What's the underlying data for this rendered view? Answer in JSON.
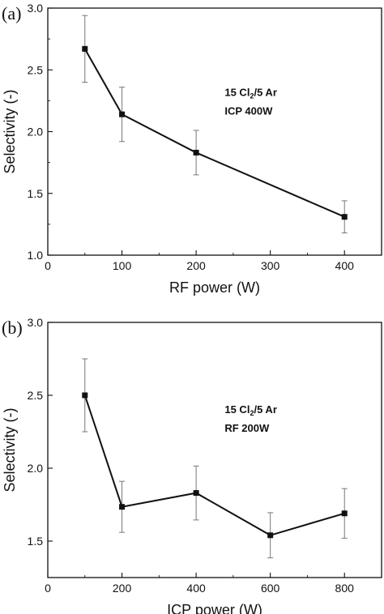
{
  "chart_data": [
    {
      "type": "line",
      "panel_label": "(a)",
      "xlabel": "RF power (W)",
      "ylabel": "Selectivity (-)",
      "xlim": [
        0,
        450
      ],
      "ylim": [
        1.0,
        3.0
      ],
      "xticks": [
        0,
        100,
        200,
        300,
        400
      ],
      "yticks": [
        1.0,
        1.5,
        2.0,
        2.5,
        3.0
      ],
      "x_tick_labels": [
        "0",
        "100",
        "200",
        "300",
        "400"
      ],
      "y_tick_labels": [
        "1.0",
        "1.5",
        "2.0",
        "2.5",
        "3.0"
      ],
      "grid": false,
      "annotation_lines": [
        {
          "parts": [
            {
              "text": "15 Cl"
            },
            {
              "text": "2",
              "sub": true
            },
            {
              "text": "/5 Ar"
            }
          ]
        },
        {
          "parts": [
            {
              "text": "ICP 400W"
            }
          ]
        }
      ],
      "series": [
        {
          "x": [
            50,
            100,
            200,
            400
          ],
          "values": [
            2.67,
            2.14,
            1.83,
            1.31
          ],
          "error": [
            0.27,
            0.22,
            0.18,
            0.13
          ],
          "marker": "square",
          "color": "#111111",
          "error_color": "#777777"
        }
      ]
    },
    {
      "type": "line",
      "panel_label": "(b)",
      "xlabel": "ICP power (W)",
      "ylabel": "Selectivity (-)",
      "xlim": [
        0,
        900
      ],
      "ylim": [
        1.25,
        3.0
      ],
      "xticks": [
        0,
        200,
        400,
        600,
        800
      ],
      "yticks": [
        1.5,
        2.0,
        2.5,
        3.0
      ],
      "x_tick_labels": [
        "0",
        "200",
        "400",
        "600",
        "800"
      ],
      "y_tick_labels": [
        "1.5",
        "2.0",
        "2.5",
        "3.0"
      ],
      "grid": false,
      "annotation_lines": [
        {
          "parts": [
            {
              "text": "15 Cl"
            },
            {
              "text": "2",
              "sub": true
            },
            {
              "text": "/5 Ar"
            }
          ]
        },
        {
          "parts": [
            {
              "text": "RF 200W"
            }
          ]
        }
      ],
      "series": [
        {
          "x": [
            100,
            200,
            400,
            600,
            800
          ],
          "values": [
            2.5,
            1.735,
            1.83,
            1.54,
            1.69
          ],
          "error": [
            0.25,
            0.175,
            0.185,
            0.155,
            0.17
          ],
          "marker": "square",
          "color": "#111111",
          "error_color": "#777777"
        }
      ]
    }
  ]
}
